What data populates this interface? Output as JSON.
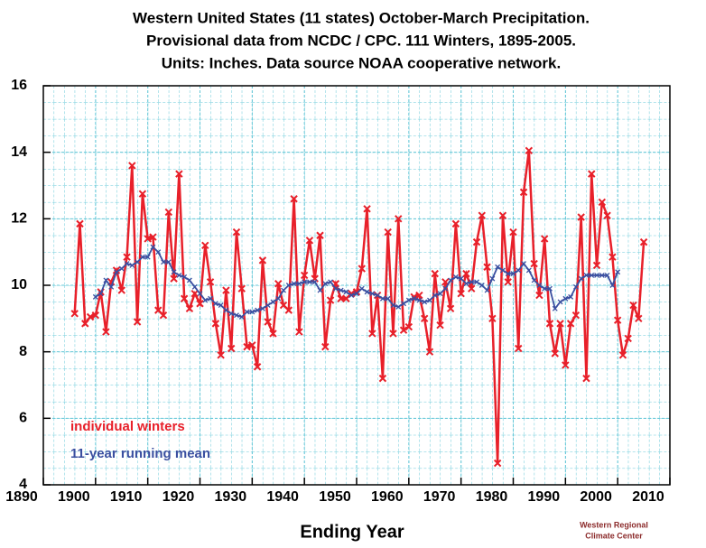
{
  "chart_data": {
    "type": "line",
    "title": "Western United States (11 states) October-March Precipitation.",
    "subtitle": [
      "Provisional data from NCDC / CPC.    111 Winters, 1895-2005.",
      "Units:  Inches.  Data source NOAA  cooperative network."
    ],
    "x_label": "Ending Year",
    "credit": [
      "Western Regional",
      "Climate Center"
    ],
    "xlim": [
      1890,
      2010
    ],
    "xticks": [
      1890,
      1900,
      1910,
      1920,
      1930,
      1940,
      1950,
      1960,
      1970,
      1980,
      1990,
      2000,
      2010
    ],
    "ylim": [
      4,
      16
    ],
    "yticks": [
      4,
      6,
      8,
      10,
      12,
      14,
      16
    ],
    "grid": true,
    "legend": "lower left",
    "series": [
      {
        "name": "individual winters",
        "color": "#e8202a",
        "x": [
          1896,
          1897,
          1898,
          1899,
          1900,
          1901,
          1902,
          1903,
          1904,
          1905,
          1906,
          1907,
          1908,
          1909,
          1910,
          1911,
          1912,
          1913,
          1914,
          1915,
          1916,
          1917,
          1918,
          1919,
          1920,
          1921,
          1922,
          1923,
          1924,
          1925,
          1926,
          1927,
          1928,
          1929,
          1930,
          1931,
          1932,
          1933,
          1934,
          1935,
          1936,
          1937,
          1938,
          1939,
          1940,
          1941,
          1942,
          1943,
          1944,
          1945,
          1946,
          1947,
          1948,
          1949,
          1950,
          1951,
          1952,
          1953,
          1954,
          1955,
          1956,
          1957,
          1958,
          1959,
          1960,
          1961,
          1962,
          1963,
          1964,
          1965,
          1966,
          1967,
          1968,
          1969,
          1970,
          1971,
          1972,
          1973,
          1974,
          1975,
          1976,
          1977,
          1978,
          1979,
          1980,
          1981,
          1982,
          1983,
          1984,
          1985,
          1986,
          1987,
          1988,
          1989,
          1990,
          1991,
          1992,
          1993,
          1994,
          1995,
          1996,
          1997,
          1998,
          1999,
          2000,
          2001,
          2002,
          2003,
          2004,
          2005
        ],
        "values": [
          9.15,
          11.85,
          8.85,
          9.05,
          9.1,
          9.8,
          8.6,
          10.1,
          10.45,
          9.85,
          10.85,
          13.6,
          8.9,
          12.75,
          11.4,
          11.45,
          9.25,
          9.1,
          12.2,
          10.2,
          13.35,
          9.6,
          9.3,
          9.75,
          9.45,
          11.2,
          10.1,
          8.85,
          7.9,
          9.85,
          8.1,
          11.6,
          9.9,
          8.15,
          8.2,
          7.55,
          10.75,
          8.9,
          8.55,
          10.05,
          9.4,
          9.25,
          12.6,
          8.6,
          10.3,
          11.35,
          10.2,
          11.5,
          8.15,
          9.55,
          10.05,
          9.6,
          9.6,
          9.75,
          9.8,
          10.5,
          12.3,
          8.55,
          9.7,
          7.2,
          11.6,
          8.55,
          12.0,
          8.65,
          8.75,
          9.65,
          9.7,
          9.0,
          8.0,
          10.35,
          8.8,
          10.1,
          9.3,
          11.85,
          9.75,
          10.35,
          9.9,
          11.3,
          12.1,
          10.55,
          9.0,
          4.65,
          12.1,
          10.1,
          11.6,
          8.1,
          12.8,
          14.05,
          10.65,
          9.7,
          11.4,
          8.85,
          7.95,
          8.85,
          7.6,
          8.85,
          9.1,
          12.05,
          7.2,
          13.35,
          10.6,
          12.5,
          12.1,
          10.85,
          8.95,
          7.9,
          8.4,
          9.4,
          9.0,
          11.3
        ]
      },
      {
        "name": "11-year running mean",
        "color": "#3a4fa0",
        "x": [
          1900,
          1901,
          1902,
          1903,
          1904,
          1905,
          1906,
          1907,
          1908,
          1909,
          1910,
          1911,
          1912,
          1913,
          1914,
          1915,
          1916,
          1917,
          1918,
          1919,
          1920,
          1921,
          1922,
          1923,
          1924,
          1925,
          1926,
          1927,
          1928,
          1929,
          1930,
          1931,
          1932,
          1933,
          1934,
          1935,
          1936,
          1937,
          1938,
          1939,
          1940,
          1941,
          1942,
          1943,
          1944,
          1945,
          1946,
          1947,
          1948,
          1949,
          1950,
          1951,
          1952,
          1953,
          1954,
          1955,
          1956,
          1957,
          1958,
          1959,
          1960,
          1961,
          1962,
          1963,
          1964,
          1965,
          1966,
          1967,
          1968,
          1969,
          1970,
          1971,
          1972,
          1973,
          1974,
          1975,
          1976,
          1977,
          1978,
          1979,
          1980,
          1981,
          1982,
          1983,
          1984,
          1985,
          1986,
          1987,
          1988,
          1989,
          1990,
          1991,
          1992,
          1993,
          1994,
          1995,
          1996,
          1997,
          1998,
          1999,
          2000
        ],
        "values": [
          9.65,
          9.75,
          10.15,
          9.95,
          10.4,
          10.5,
          10.65,
          10.6,
          10.7,
          10.85,
          10.85,
          11.15,
          11.0,
          10.7,
          10.7,
          10.4,
          10.3,
          10.25,
          10.15,
          9.95,
          9.75,
          9.55,
          9.6,
          9.45,
          9.4,
          9.25,
          9.15,
          9.1,
          9.05,
          9.2,
          9.2,
          9.25,
          9.3,
          9.4,
          9.5,
          9.6,
          9.85,
          10.0,
          10.05,
          10.05,
          10.1,
          10.1,
          10.1,
          9.85,
          10.05,
          10.1,
          9.9,
          9.85,
          9.8,
          9.7,
          9.75,
          9.9,
          9.8,
          9.75,
          9.7,
          9.6,
          9.6,
          9.4,
          9.35,
          9.45,
          9.55,
          9.6,
          9.55,
          9.5,
          9.55,
          9.7,
          9.75,
          9.9,
          10.15,
          10.25,
          10.2,
          10.05,
          10.1,
          10.1,
          10.0,
          9.85,
          10.2,
          10.55,
          10.45,
          10.35,
          10.35,
          10.45,
          10.65,
          10.45,
          10.15,
          10.0,
          9.9,
          9.9,
          9.3,
          9.5,
          9.6,
          9.65,
          9.95,
          10.2,
          10.3,
          10.3,
          10.3,
          10.3,
          10.3,
          10.0,
          10.4
        ]
      }
    ]
  }
}
